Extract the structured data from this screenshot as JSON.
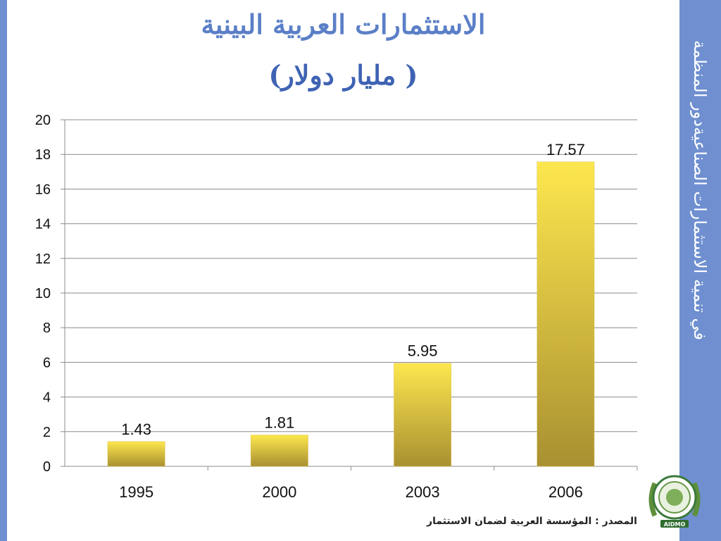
{
  "slide": {
    "title_line1": "الاستثمارات العربية البينية",
    "title_line2": "( مليار دولار)",
    "side_text": "في تنمية الاستثمارات الصناعيةدور المنظمة",
    "source": "المصدر :  المؤسسة العربية لضمان الاستثمار",
    "logo_text": "AIDMO",
    "colors": {
      "side_bar": "#6f8fd0",
      "title": "#5b7fc7",
      "bar_top": "#fde74e",
      "bar_bottom": "#a99031"
    }
  },
  "chart_data": {
    "type": "bar",
    "categories": [
      "1995",
      "2000",
      "2003",
      "2006"
    ],
    "values": [
      1.43,
      1.81,
      5.95,
      17.57
    ],
    "data_labels": [
      "1.43",
      "1.81",
      "5.95",
      "17.57"
    ],
    "yticks": [
      "0",
      "2",
      "4",
      "6",
      "8",
      "10",
      "12",
      "14",
      "16",
      "18",
      "20"
    ],
    "ylim": [
      0,
      20
    ],
    "grid": true,
    "legend": "none"
  }
}
